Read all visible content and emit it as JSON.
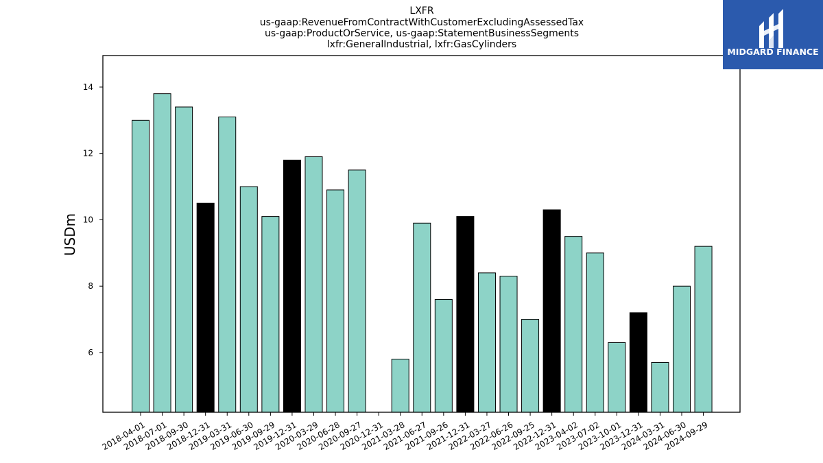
{
  "chart_data": {
    "type": "bar",
    "title_lines": [
      "LXFR",
      "us-gaap:RevenueFromContractWithCustomerExcludingAssessedTax",
      "us-gaap:ProductOrService, us-gaap:StatementBusinessSegments",
      "lxfr:GeneralIndustrial, lxfr:GasCylinders"
    ],
    "xlabel": "",
    "ylabel": "USDm",
    "ylim": [
      4.2,
      14.95
    ],
    "yticks": [
      6,
      8,
      10,
      12,
      14
    ],
    "grid": false,
    "categories": [
      "2018-04-01",
      "2018-07-01",
      "2018-09-30",
      "2018-12-31",
      "2019-03-31",
      "2019-06-30",
      "2019-09-29",
      "2019-12-31",
      "2020-03-29",
      "2020-06-28",
      "2020-09-27",
      "2020-12-31",
      "2021-03-28",
      "2021-06-27",
      "2021-09-26",
      "2021-12-31",
      "2022-03-27",
      "2022-06-26",
      "2022-09-25",
      "2022-12-31",
      "2023-04-02",
      "2023-07-02",
      "2023-10-01",
      "2023-12-31",
      "2024-03-31",
      "2024-06-30",
      "2024-09-29"
    ],
    "values": [
      13.0,
      13.8,
      13.4,
      10.5,
      13.1,
      11.0,
      10.1,
      11.8,
      11.9,
      10.9,
      11.5,
      null,
      5.8,
      9.9,
      7.6,
      10.1,
      8.4,
      8.3,
      7.0,
      10.3,
      9.5,
      9.0,
      6.3,
      7.2,
      5.7,
      8.0,
      9.2
    ],
    "colors": {
      "quarter": "#8dd3c7",
      "year_end": "#000000",
      "edge": "#000000"
    }
  },
  "logo": {
    "text": "MIDGARD FINANCE",
    "background": "#2b5aad"
  }
}
